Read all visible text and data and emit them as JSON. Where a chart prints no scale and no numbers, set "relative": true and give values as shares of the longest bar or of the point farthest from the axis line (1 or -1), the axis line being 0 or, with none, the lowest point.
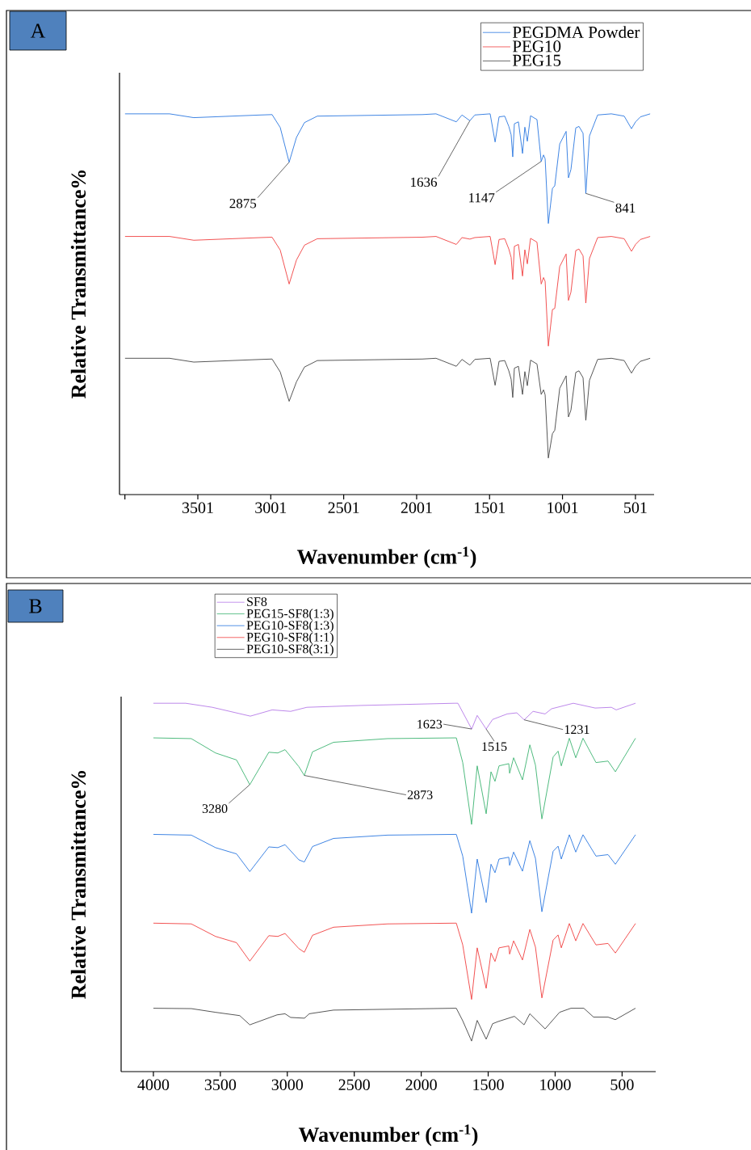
{
  "chart_data": [
    {
      "type": "line",
      "title": "A",
      "xlabel": "Wavenumber (cm$^{-1}$)",
      "ylabel": "Relative Transmittance%",
      "relative": true,
      "legend": "top right",
      "xlim": [
        4038,
        373
      ],
      "xticks": [
        {
          "value": 4001,
          "label": null
        },
        3501,
        3001,
        2501,
        2001,
        1501,
        1001,
        501
      ],
      "x": [
        4000,
        3695,
        3529,
        3069,
        2992,
        2936,
        2875,
        2825,
        2770,
        2682,
        1962,
        1868,
        1729,
        1690,
        1636,
        1602,
        1497,
        1463,
        1436,
        1397,
        1369,
        1353,
        1342,
        1331,
        1303,
        1275,
        1259,
        1242,
        1220,
        1176,
        1147,
        1131,
        1120,
        1098,
        1070,
        1054,
        1020,
        976,
        960,
        943,
        910,
        888,
        860,
        841,
        816,
        760,
        666,
        578,
        528,
        500,
        467,
        400
      ],
      "series": [
        {
          "name": "PEGDMA Powder",
          "color": "#2a77e0",
          "values": [
            1.0,
            1.0,
            0.99,
            0.997,
            0.998,
            0.964,
            0.873,
            0.938,
            0.977,
            0.994,
            0.998,
            1.0,
            0.979,
            0.997,
            0.982,
            0.997,
            1.0,
            0.926,
            0.992,
            0.994,
            0.967,
            0.945,
            0.887,
            0.974,
            0.979,
            0.896,
            0.965,
            0.928,
            0.995,
            0.985,
            0.875,
            0.892,
            0.882,
            0.712,
            0.804,
            0.811,
            0.921,
            0.954,
            0.832,
            0.854,
            0.963,
            0.967,
            0.949,
            0.791,
            0.942,
            0.997,
            1.0,
            0.994,
            0.961,
            0.979,
            0.992,
            1.0
          ]
        },
        {
          "name": "PEG10",
          "color": "#f04040",
          "values": [
            0.678,
            0.678,
            0.668,
            0.675,
            0.676,
            0.642,
            0.553,
            0.616,
            0.655,
            0.672,
            0.676,
            0.678,
            0.657,
            0.675,
            0.671,
            0.675,
            0.678,
            0.604,
            0.67,
            0.672,
            0.645,
            0.623,
            0.565,
            0.652,
            0.657,
            0.574,
            0.643,
            0.606,
            0.673,
            0.663,
            0.553,
            0.57,
            0.56,
            0.39,
            0.486,
            0.489,
            0.599,
            0.632,
            0.51,
            0.532,
            0.641,
            0.645,
            0.627,
            0.503,
            0.62,
            0.675,
            0.678,
            0.672,
            0.639,
            0.657,
            0.67,
            0.678
          ]
        },
        {
          "name": "PEG15",
          "color": "#444444",
          "values": [
            0.358,
            0.358,
            0.348,
            0.355,
            0.356,
            0.322,
            0.245,
            0.296,
            0.335,
            0.352,
            0.356,
            0.358,
            0.337,
            0.355,
            0.34,
            0.355,
            0.358,
            0.287,
            0.35,
            0.352,
            0.325,
            0.303,
            0.255,
            0.332,
            0.337,
            0.263,
            0.323,
            0.286,
            0.353,
            0.343,
            0.263,
            0.275,
            0.262,
            0.096,
            0.16,
            0.169,
            0.279,
            0.312,
            0.204,
            0.222,
            0.321,
            0.325,
            0.307,
            0.195,
            0.3,
            0.355,
            0.358,
            0.352,
            0.319,
            0.337,
            0.35,
            0.358
          ]
        }
      ],
      "annotations": [
        {
          "text": "2875",
          "x": 2875,
          "y": 0.873
        },
        {
          "text": "1636",
          "x": 1636,
          "y": 0.982
        },
        {
          "text": "1147",
          "x": 1147,
          "y": 0.875
        },
        {
          "text": "841",
          "x": 841,
          "y": 0.791
        }
      ]
    },
    {
      "type": "line",
      "title": "B",
      "xlabel": "Wavenumber (cm$^{-1}$)",
      "ylabel": "Relative Transmittance%",
      "relative": true,
      "legend": "top left",
      "xlim": [
        4241,
        249
      ],
      "xticks": [
        4000,
        3500,
        3000,
        2500,
        2000,
        1500,
        1000,
        500
      ],
      "x": [
        4000,
        3717,
        3536,
        3379,
        3280,
        3138,
        3071,
        3017,
        2914,
        2873,
        2812,
        2655,
        2251,
        1750,
        1738,
        1690,
        1624,
        1582,
        1515,
        1479,
        1449,
        1419,
        1346,
        1340,
        1310,
        1244,
        1189,
        1147,
        1099,
        1015,
        978,
        954,
        894,
        846,
        792,
        695,
        605,
        550,
        400
      ],
      "series": [
        {
          "name": "SF8",
          "color": "#b57be8",
          "x": [
            4000,
            3759,
            3560,
            3276,
            3113,
            2975,
            2854,
            2450,
            1750,
            1726,
            1623,
            1582,
            1515,
            1467,
            1358,
            1286,
            1231,
            1165,
            1075,
            1027,
            864,
            701,
            580,
            544,
            400
          ],
          "values": [
            1.0,
            1.0,
            0.989,
            0.965,
            0.982,
            0.978,
            0.989,
            0.994,
            1.0,
            1.0,
            0.93,
            0.967,
            0.93,
            0.956,
            0.971,
            0.974,
            0.955,
            0.978,
            0.971,
            0.985,
            1.0,
            0.987,
            0.989,
            0.982,
            1.0
          ]
        },
        {
          "name": "PEG15-SF8(1:3)",
          "color": "#3cb371",
          "values": [
            0.906,
            0.904,
            0.865,
            0.846,
            0.779,
            0.867,
            0.865,
            0.874,
            0.828,
            0.804,
            0.868,
            0.894,
            0.904,
            0.906,
            0.906,
            0.839,
            0.671,
            0.83,
            0.7,
            0.814,
            0.788,
            0.83,
            0.836,
            0.81,
            0.852,
            0.792,
            0.887,
            0.832,
            0.686,
            0.854,
            0.87,
            0.83,
            0.905,
            0.852,
            0.905,
            0.839,
            0.843,
            0.814,
            0.905
          ]
        },
        {
          "name": "PEG10-SF8(1:3)",
          "color": "#2a77e0",
          "values": [
            0.644,
            0.642,
            0.608,
            0.591,
            0.543,
            0.61,
            0.608,
            0.616,
            0.575,
            0.569,
            0.611,
            0.633,
            0.642,
            0.644,
            0.644,
            0.585,
            0.43,
            0.577,
            0.459,
            0.563,
            0.54,
            0.577,
            0.582,
            0.56,
            0.596,
            0.544,
            0.627,
            0.579,
            0.434,
            0.598,
            0.612,
            0.577,
            0.643,
            0.596,
            0.643,
            0.585,
            0.589,
            0.563,
            0.643
          ]
        },
        {
          "name": "PEG10-SF8(1:1)",
          "color": "#f04040",
          "values": [
            0.403,
            0.401,
            0.367,
            0.35,
            0.3,
            0.369,
            0.367,
            0.375,
            0.334,
            0.324,
            0.37,
            0.392,
            0.401,
            0.403,
            0.403,
            0.344,
            0.196,
            0.336,
            0.226,
            0.322,
            0.299,
            0.336,
            0.341,
            0.319,
            0.355,
            0.303,
            0.386,
            0.338,
            0.2,
            0.357,
            0.371,
            0.336,
            0.402,
            0.355,
            0.402,
            0.344,
            0.348,
            0.322,
            0.402
          ]
        },
        {
          "name": "PEG10-SF8(3:1)",
          "color": "#444444",
          "x": [
            4000,
            3717,
            3536,
            3355,
            3280,
            3077,
            3017,
            2975,
            2872,
            2836,
            2655,
            1750,
            1738,
            1690,
            1624,
            1582,
            1515,
            1467,
            1425,
            1304,
            1232,
            1189,
            1075,
            967,
            882,
            786,
            713,
            605,
            550,
            400
          ],
          "values": [
            0.172,
            0.171,
            0.161,
            0.152,
            0.127,
            0.154,
            0.157,
            0.147,
            0.145,
            0.157,
            0.167,
            0.172,
            0.172,
            0.138,
            0.083,
            0.139,
            0.088,
            0.13,
            0.136,
            0.15,
            0.127,
            0.157,
            0.116,
            0.161,
            0.172,
            0.172,
            0.148,
            0.148,
            0.141,
            0.172
          ]
        }
      ],
      "annotations": [
        {
          "text": "1623",
          "x": 1623,
          "y": 0.93
        },
        {
          "text": "1515",
          "x": 1515,
          "y": 0.93
        },
        {
          "text": "1231",
          "x": 1231,
          "y": 0.955
        },
        {
          "text": "3280",
          "x": 3280,
          "y": 0.779
        },
        {
          "text": "2873",
          "x": 2873,
          "y": 0.804
        }
      ]
    }
  ]
}
